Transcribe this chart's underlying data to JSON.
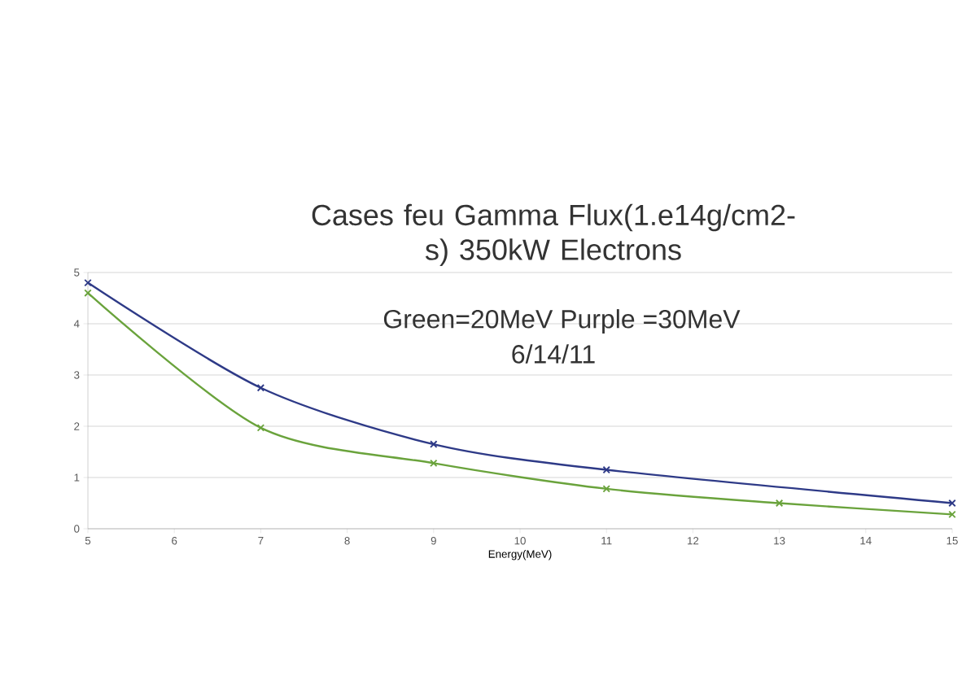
{
  "chart_data": {
    "type": "line",
    "title": "Cases feu Gamma Flux(1.e14g/cm2-s)  350kW Electrons",
    "subtitle": "Green=20MeV       Purple =30MeV",
    "annotations": [
      "6/14/11"
    ],
    "xlabel": "Energy(MeV)",
    "series": [
      {
        "color": "#2e3a87",
        "x": [
          5,
          7,
          9,
          11,
          15
        ],
        "values": [
          4.8,
          2.75,
          1.65,
          1.15,
          0.5
        ]
      },
      {
        "color": "#6aa33c",
        "x": [
          5,
          7,
          9,
          11,
          13,
          15
        ],
        "values": [
          4.6,
          1.97,
          1.28,
          0.78,
          0.5,
          0.28
        ]
      }
    ],
    "xlim": [
      5,
      15
    ],
    "xticks": [
      5,
      6,
      7,
      8,
      9,
      10,
      11,
      12,
      13,
      14,
      15
    ],
    "ylim": [
      0,
      5
    ],
    "yticks": [
      0,
      1,
      2,
      3,
      4,
      5
    ],
    "grid": "y",
    "marker": "cross",
    "line_style": "solid"
  }
}
